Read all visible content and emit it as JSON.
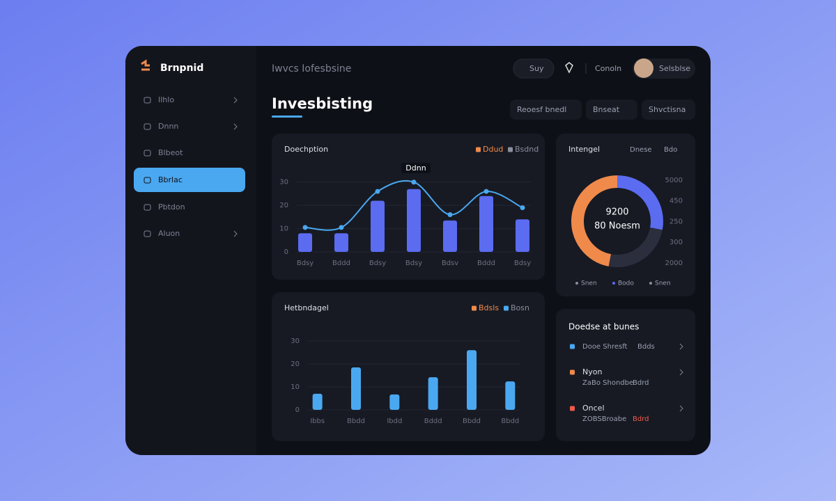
{
  "brand": "Brnpnid",
  "nav": [
    "Ilhlo",
    "Dnnn",
    "Blbeot",
    "Bbrlac",
    "Pbtdon",
    "Aluon"
  ],
  "header": {
    "breadcrumb": "Iwvcs Iofesbsine",
    "search": "Suy",
    "action": "Conoln",
    "user": "Selsblse"
  },
  "page_title": "Invesbisting",
  "filters": [
    "Reoesf bnedl",
    "Bnseat",
    "Shvctisna"
  ],
  "bar_line": {
    "type": "bar",
    "title": "Doechption",
    "legend": [
      {
        "name": "Ddud",
        "color": "#f08a4b"
      },
      {
        "name": "Bsdnd",
        "color": "#8a8f9e"
      }
    ],
    "annotation": "Ddnn",
    "categories": [
      "Bdsy",
      "Bddd",
      "Bdsy",
      "Bdsy",
      "Bdsv",
      "Bddd",
      "Bdsy"
    ],
    "values": [
      8,
      8,
      22,
      27,
      13.5,
      24,
      14
    ],
    "line_values": [
      10.5,
      10.5,
      26,
      30,
      16,
      26,
      19
    ],
    "bar_color": "#5b6cf0",
    "line_color": "#4aa8f0",
    "ylim": [
      0,
      35
    ],
    "yticks": [
      0,
      10,
      20,
      30
    ]
  },
  "bars": {
    "type": "bar",
    "title": "Hetbndagel",
    "legend": [
      {
        "name": "Bdsls",
        "color": "#f08a4b"
      },
      {
        "name": "Bosn",
        "color": "#4aa8f0"
      }
    ],
    "categories": [
      "Ibbs",
      "Bbdd",
      "Ibdd",
      "Bddd",
      "Bbdd",
      "Bbdd"
    ],
    "values": [
      7,
      18.5,
      6.7,
      14.2,
      26,
      12.4
    ],
    "color": "#4aa8f0",
    "ylim": [
      0,
      30
    ],
    "yticks": [
      0,
      10,
      20,
      30
    ]
  },
  "donut": {
    "type": "pie",
    "title": "Intengel",
    "legend_top": [
      "Dnese",
      "Bdo"
    ],
    "center": [
      "9200",
      "80 Noesm"
    ],
    "scale_labels": [
      "5000",
      "450",
      "250",
      "300",
      "2000"
    ],
    "values": [
      28,
      25,
      47
    ],
    "colors": [
      "#5b6cf0",
      "#2a2e3d",
      "#f08a4b"
    ],
    "legend": [
      "Snen",
      "Bodo",
      "Snen"
    ]
  },
  "list": {
    "title": "Doedse at bunes",
    "items": [
      {
        "title": "Dooe Shresft",
        "tag": "Bdds",
        "color": "#4aa8f0"
      },
      {
        "title": "Nyon",
        "sub": "ZaBo Shondbe",
        "tag": "Bdrd",
        "color": "#f08a4b"
      },
      {
        "title": "Oncel",
        "sub": "ZOBSBroabe",
        "tag": "Bdrd",
        "color": "#f05a4b"
      }
    ]
  }
}
